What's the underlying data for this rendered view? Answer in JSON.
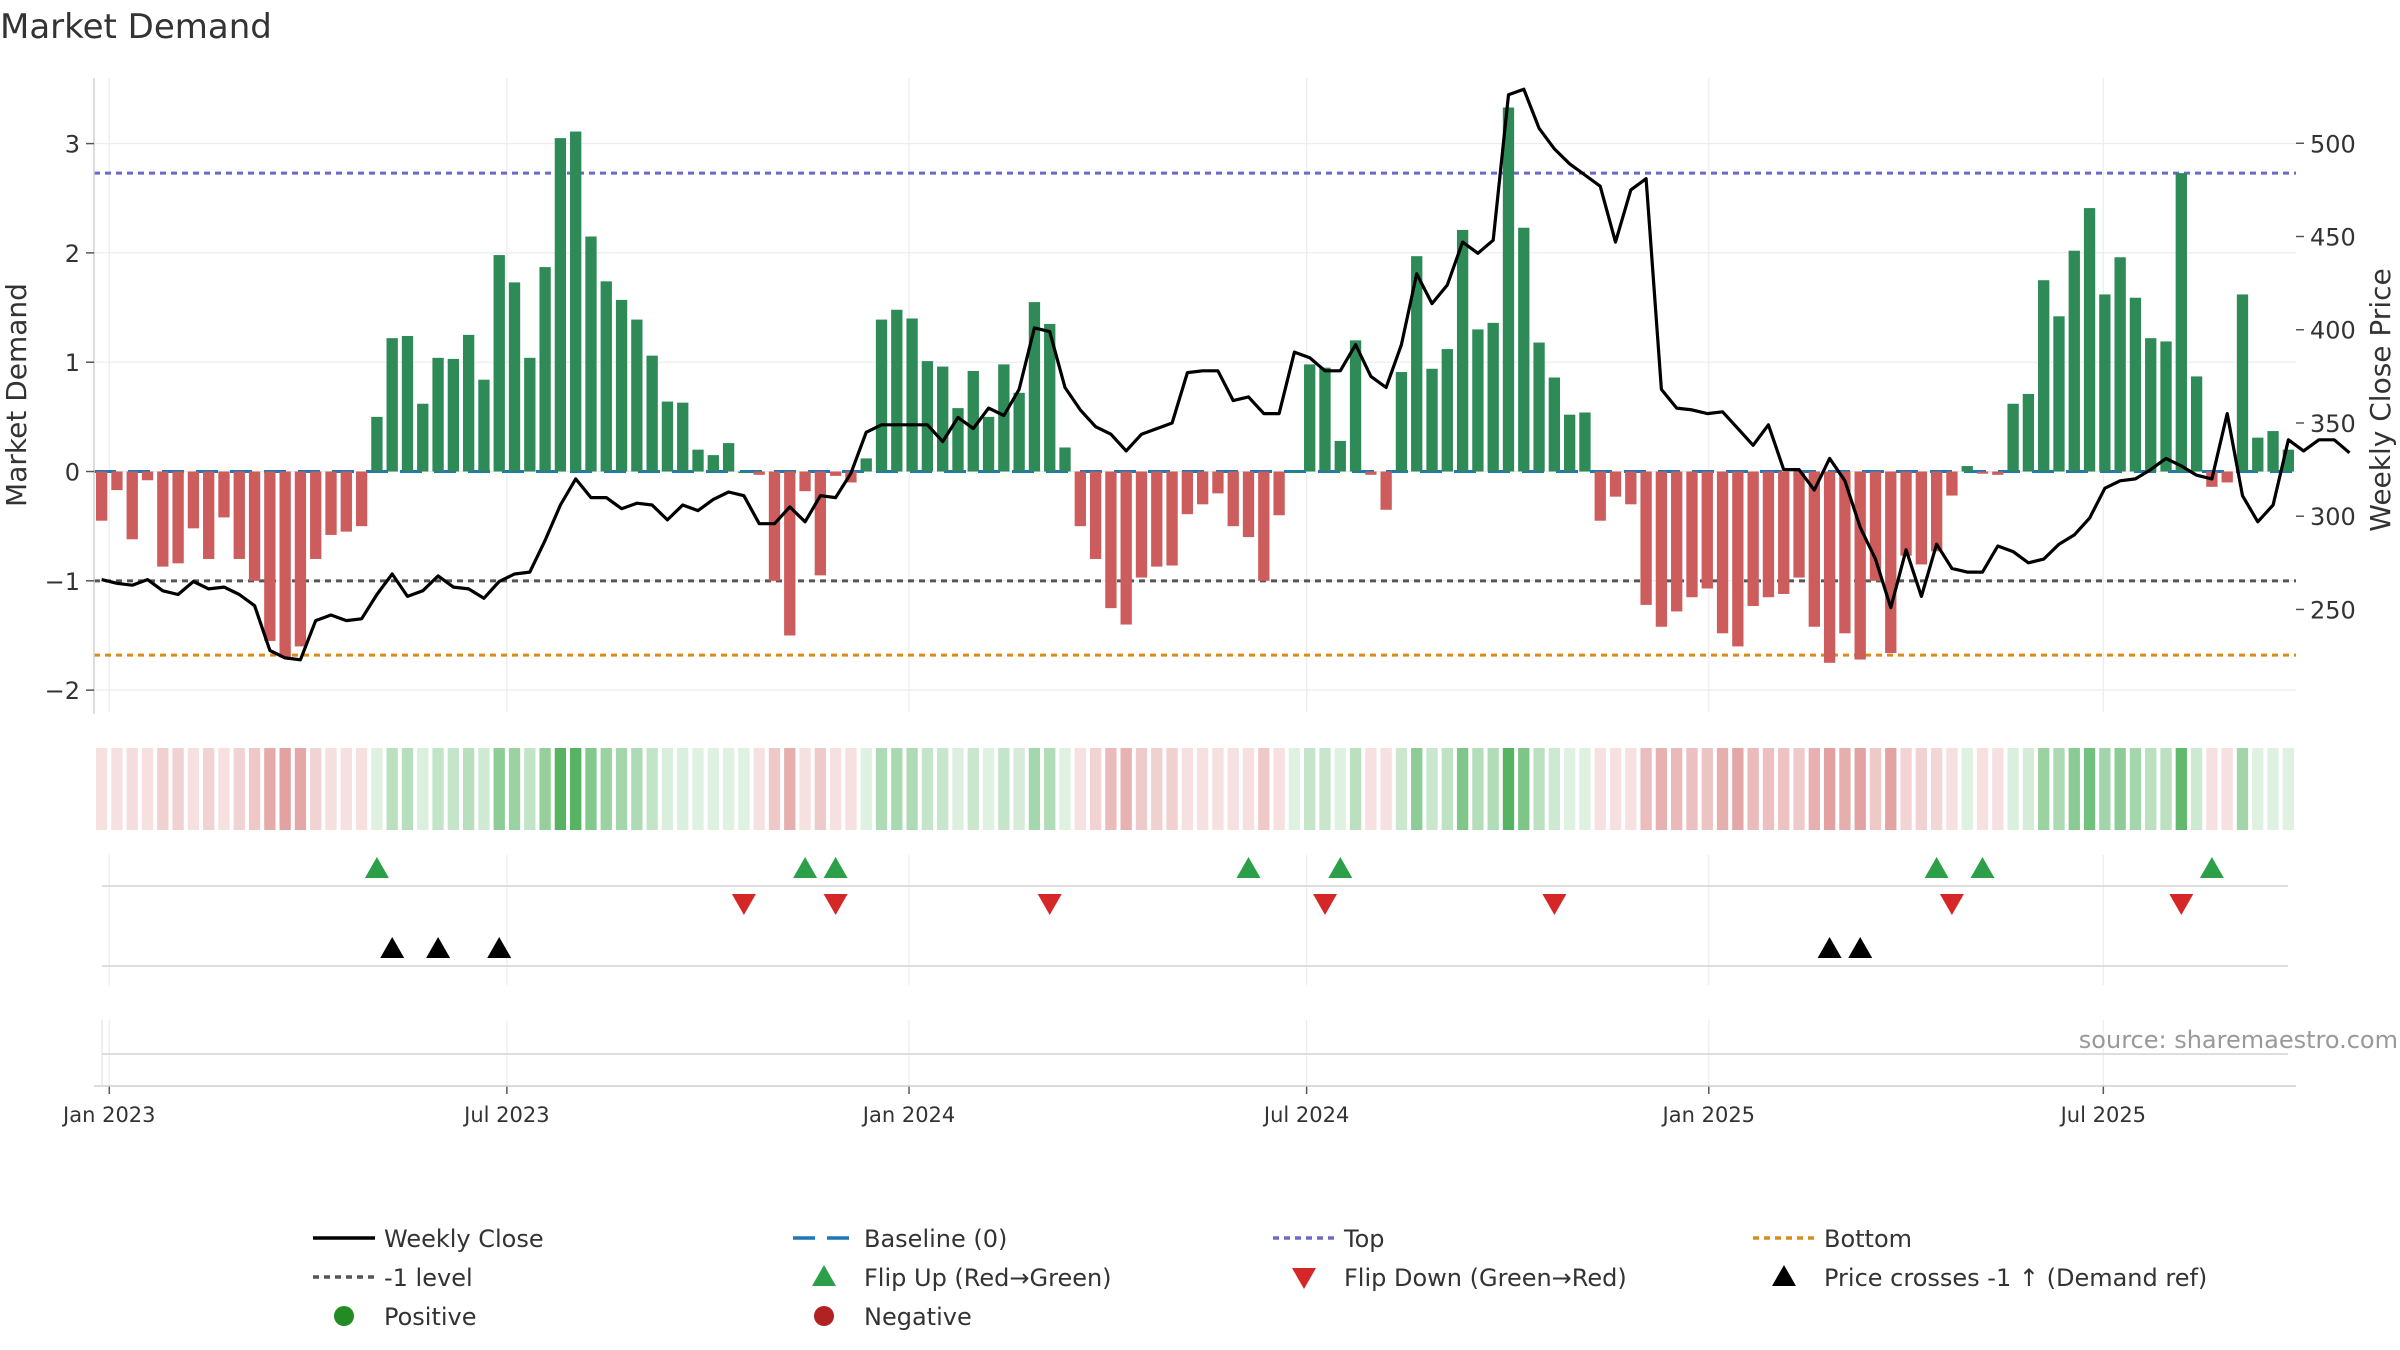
{
  "chart_data": {
    "type": "bar",
    "title": "Market Demand",
    "ylabel_left": "Market Demand",
    "ylabel_right": "Weekly Close Price",
    "ylim_left": [
      -2.2,
      3.6
    ],
    "ylim_right": [
      195,
      535
    ],
    "yticks_left": [
      {
        "v": 3,
        "t": "3"
      },
      {
        "v": 2,
        "t": "2"
      },
      {
        "v": 1,
        "t": "1"
      },
      {
        "v": 0,
        "t": "0"
      },
      {
        "v": -1,
        "t": "−1"
      },
      {
        "v": -2,
        "t": "−2"
      }
    ],
    "yticks_right": [
      {
        "v": 500,
        "t": "500"
      },
      {
        "v": 450,
        "t": "450"
      },
      {
        "v": 400,
        "t": "400"
      },
      {
        "v": 350,
        "t": "350"
      },
      {
        "v": 300,
        "t": "300"
      },
      {
        "v": 250,
        "t": "250"
      }
    ],
    "xticks": [
      {
        "w": 0,
        "t": "Jan 2023"
      },
      {
        "w": 26,
        "t": "Jul 2023"
      },
      {
        "w": 52.3,
        "t": "Jan 2024"
      },
      {
        "w": 78.3,
        "t": "Jul 2024"
      },
      {
        "w": 104.6,
        "t": "Jan 2025"
      },
      {
        "w": 130.4,
        "t": "Jul 2025"
      }
    ],
    "first_week_offset": -1,
    "demand": [
      -0.45,
      -0.17,
      -0.62,
      -0.08,
      -0.87,
      -0.84,
      -0.52,
      -0.8,
      -0.42,
      -0.8,
      -1.0,
      -1.55,
      -1.7,
      -1.6,
      -0.8,
      -0.58,
      -0.55,
      -0.5,
      0.5,
      1.22,
      1.24,
      0.62,
      1.04,
      1.03,
      1.25,
      0.84,
      1.98,
      1.73,
      1.04,
      1.87,
      3.05,
      3.11,
      2.15,
      1.74,
      1.57,
      1.39,
      1.06,
      0.64,
      0.63,
      0.2,
      0.15,
      0.26,
      0.0,
      -0.03,
      -1.0,
      -1.5,
      -0.18,
      -0.95,
      -0.04,
      -0.1,
      0.12,
      1.39,
      1.48,
      1.4,
      1.01,
      0.96,
      0.58,
      0.92,
      0.5,
      0.98,
      0.72,
      1.55,
      1.35,
      0.22,
      -0.5,
      -0.8,
      -1.25,
      -1.4,
      -0.97,
      -0.87,
      -0.86,
      -0.39,
      -0.3,
      -0.2,
      -0.5,
      -0.6,
      -1.0,
      -0.4,
      0.0,
      0.98,
      0.95,
      0.28,
      1.2,
      -0.03,
      -0.35,
      0.91,
      1.97,
      0.94,
      1.12,
      2.21,
      1.3,
      1.36,
      3.33,
      2.23,
      1.18,
      0.86,
      0.52,
      0.54,
      -0.45,
      -0.23,
      -0.3,
      -1.22,
      -1.42,
      -1.28,
      -1.15,
      -1.07,
      -1.48,
      -1.6,
      -1.23,
      -1.15,
      -1.12,
      -0.97,
      -1.42,
      -1.75,
      -1.48,
      -1.72,
      -1.0,
      -1.66,
      -0.77,
      -0.85,
      -0.73,
      -0.22,
      0.05,
      -0.02,
      -0.03,
      0.62,
      0.71,
      1.75,
      1.42,
      2.02,
      2.41,
      1.62,
      1.96,
      1.59,
      1.22,
      1.19,
      2.73,
      0.87,
      -0.14,
      -0.1,
      1.62,
      0.31,
      0.37,
      0.2
    ],
    "weekly_close": [
      266,
      264,
      263,
      266,
      260,
      258,
      265,
      261,
      262,
      258,
      252,
      228,
      224,
      223,
      244,
      247,
      244,
      245,
      258,
      269,
      257,
      260,
      268,
      262,
      261,
      256,
      265,
      269,
      270,
      287,
      306,
      320,
      310,
      310,
      304,
      307,
      306,
      298,
      306,
      303,
      309,
      313,
      311,
      296,
      296,
      305,
      297,
      311,
      310,
      323,
      345,
      349,
      349,
      349,
      349,
      340,
      353,
      347,
      358,
      354,
      368,
      401,
      399,
      369,
      357,
      348,
      344,
      335,
      344,
      347,
      350,
      377,
      378,
      378,
      362,
      364,
      355,
      355,
      388,
      385,
      378,
      378,
      392,
      375,
      369,
      392,
      430,
      414,
      424,
      447,
      441,
      448,
      526,
      529,
      508,
      497,
      489,
      483,
      477,
      447,
      475,
      481,
      368,
      358,
      357,
      355,
      356,
      347,
      338,
      349,
      325,
      325,
      314,
      331,
      319,
      294,
      277,
      251,
      282,
      257,
      285,
      272,
      270,
      270,
      284,
      281,
      275,
      277,
      285,
      290,
      299,
      315,
      319,
      320,
      325,
      331,
      327,
      322,
      320,
      355,
      311,
      297,
      306,
      341,
      335,
      341,
      341,
      334
    ],
    "reference_lines": [
      {
        "name": "Baseline (0)",
        "value": 0,
        "axis": "left",
        "color": "#1f77b4",
        "dash": "22 12",
        "width": 3
      },
      {
        "name": "Top",
        "value": 2.73,
        "axis": "left",
        "color": "#6a6acd",
        "dash": "6 5",
        "width": 3
      },
      {
        "name": "-1 level",
        "value": -1,
        "axis": "left",
        "color": "#555555",
        "dash": "6 5",
        "width": 3
      },
      {
        "name": "Bottom",
        "value": -1.68,
        "axis": "left",
        "color": "#d98c1a",
        "dash": "6 5",
        "width": 3
      }
    ],
    "flip_up_weeks": [
      17,
      45,
      47,
      74,
      80,
      119,
      122,
      137
    ],
    "flip_down_weeks": [
      41,
      47,
      61,
      79,
      94,
      120,
      135
    ],
    "price_cross_weeks": [
      18,
      21,
      25,
      112,
      114
    ],
    "colors": {
      "positive_bar": "#2e8b57",
      "negative_bar": "#cd5c5c",
      "positive_strip": "#4caf5a",
      "negative_strip": "#cc5555",
      "line": "#000000",
      "flip_up": "#2ca048",
      "flip_down": "#d62728",
      "cross": "#000000",
      "positive_dot": "#228b22",
      "negative_dot": "#b22222"
    },
    "source": "source: sharemaestro.com",
    "legend": [
      {
        "label": "Weekly Close",
        "kind": "line-solid",
        "color": "#000000"
      },
      {
        "label": "Baseline (0)",
        "kind": "line-dash",
        "color": "#1f77b4"
      },
      {
        "label": "Top",
        "kind": "line-dot",
        "color": "#6a6acd"
      },
      {
        "label": "Bottom",
        "kind": "line-dot",
        "color": "#d98c1a"
      },
      {
        "label": "-1 level",
        "kind": "line-dot",
        "color": "#555555"
      },
      {
        "label": "Flip Up (Red→Green)",
        "kind": "tri-up",
        "color": "#2ca048"
      },
      {
        "label": "Flip Down (Green→Red)",
        "kind": "tri-down",
        "color": "#d62728"
      },
      {
        "label": "Price crosses -1 ↑ (Demand ref)",
        "kind": "tri-up",
        "color": "#000000"
      },
      {
        "label": "Positive",
        "kind": "dot",
        "color": "#228b22"
      },
      {
        "label": "Negative",
        "kind": "dot",
        "color": "#b22222"
      }
    ]
  }
}
